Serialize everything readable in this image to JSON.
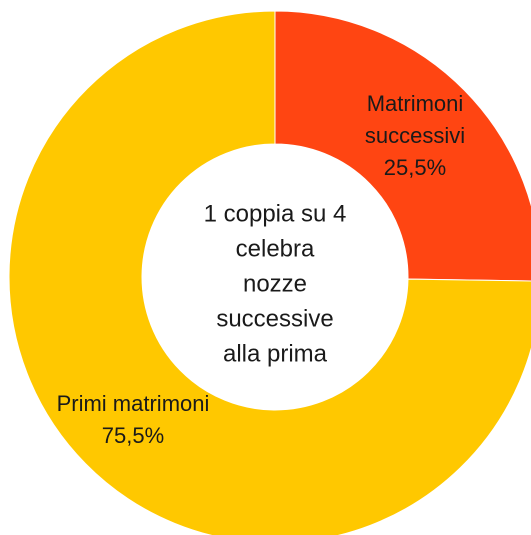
{
  "chart_data": {
    "type": "donut",
    "categories": [
      "Matrimoni successivi",
      "Primi matrimoni"
    ],
    "values": [
      25.5,
      75.5
    ],
    "value_labels": [
      "25,5%",
      "75,5%"
    ],
    "colors": [
      "#ff4512",
      "#ffc800"
    ],
    "center_text": [
      "1 coppia su 4",
      "celebra",
      "nozze",
      "successive",
      "alla prima"
    ]
  }
}
